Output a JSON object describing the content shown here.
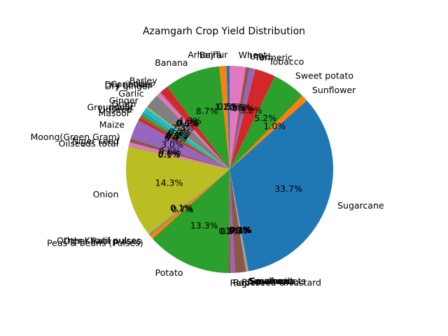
{
  "chart_data": {
    "type": "pie",
    "title": "Azamgarh Crop Yield Distribution",
    "start_angle_deg": 90,
    "direction": "counterclockwise",
    "slices": [
      {
        "label": "Arhar/Tur",
        "value": 0.5,
        "pct_label": "0.5%",
        "color": "#1f77b4"
      },
      {
        "label": "Bajra",
        "value": 1.1,
        "pct_label": "1.1%",
        "color": "#ff7f0e"
      },
      {
        "label": "Banana",
        "value": 8.7,
        "pct_label": "8.7%",
        "color": "#2ca02c"
      },
      {
        "label": "Barley",
        "value": 1.3,
        "pct_label": "1.3%",
        "color": "#d62728"
      },
      {
        "label": "Coriander",
        "value": 0.1,
        "pct_label": "0.1%",
        "color": "#9467bd"
      },
      {
        "label": "Dry chillies",
        "value": 0.1,
        "pct_label": "0.1%",
        "color": "#8c564b"
      },
      {
        "label": "Dry ginger",
        "value": 0.6,
        "pct_label": "0.6%",
        "color": "#e377c2"
      },
      {
        "label": "Garlic",
        "value": 2.3,
        "pct_label": "2.3%",
        "color": "#7f7f7f"
      },
      {
        "label": "Ginger",
        "value": 0.2,
        "pct_label": "0.2%",
        "color": "#bcbd22"
      },
      {
        "label": "Gram",
        "value": 0.9,
        "pct_label": "0.9%",
        "color": "#17becf"
      },
      {
        "label": "Groundnut",
        "value": 0.2,
        "pct_label": "0.2%",
        "color": "#1f77b4"
      },
      {
        "label": "Jowar",
        "value": 0.1,
        "pct_label": "0.1%",
        "color": "#ff7f0e"
      },
      {
        "label": "Linseed",
        "value": 0.5,
        "pct_label": "0.5%",
        "color": "#2ca02c"
      },
      {
        "label": "Masoor",
        "value": 0.6,
        "pct_label": "0.6%",
        "color": "#d62728"
      },
      {
        "label": "Maize",
        "value": 3.0,
        "pct_label": "3.0%",
        "color": "#9467bd"
      },
      {
        "label": "Moong(Green Gram)",
        "value": 0.6,
        "pct_label": "0.6%",
        "color": "#8c564b"
      },
      {
        "label": "Niger seed",
        "value": 0.6,
        "pct_label": "0.6%",
        "color": "#e377c2"
      },
      {
        "label": "Oilseeds total",
        "value": 0.1,
        "pct_label": "0.1%",
        "color": "#7f7f7f"
      },
      {
        "label": "Onion",
        "value": 14.3,
        "pct_label": "14.3%",
        "color": "#bcbd22"
      },
      {
        "label": "Other Kharif pulses",
        "value": 0.1,
        "pct_label": "0.1%",
        "color": "#17becf"
      },
      {
        "label": "Other Rabi pulses",
        "value": 0.1,
        "pct_label": "0.1%",
        "color": "#1f77b4"
      },
      {
        "label": "Peas & beans (Pulses)",
        "value": 0.7,
        "pct_label": "0.7%",
        "color": "#ff7f0e"
      },
      {
        "label": "Potato",
        "value": 13.3,
        "pct_label": "13.3%",
        "color": "#2ca02c"
      },
      {
        "label": "Ragi",
        "value": 0.2,
        "pct_label": "0.2%",
        "color": "#d62728"
      },
      {
        "label": "Rapeseed &Mustard",
        "value": 0.7,
        "pct_label": "0.7%",
        "color": "#9467bd"
      },
      {
        "label": "Rice",
        "value": 1.7,
        "pct_label": "1.7%",
        "color": "#8c564b"
      },
      {
        "label": "Sannhamp",
        "value": 0.1,
        "pct_label": "0.1%",
        "color": "#e377c2"
      },
      {
        "label": "Sesamum",
        "value": 0.1,
        "pct_label": "0.1%",
        "color": "#7f7f7f"
      },
      {
        "label": "Small millets",
        "value": 0.1,
        "pct_label": "0.1%",
        "color": "#bcbd22"
      },
      {
        "label": "Soyabean",
        "value": 0.1,
        "pct_label": "0.1%",
        "color": "#17becf"
      },
      {
        "label": "Sugarcane",
        "value": 33.7,
        "pct_label": "33.7%",
        "color": "#1f77b4"
      },
      {
        "label": "Sunflower",
        "value": 1.0,
        "pct_label": "1.0%",
        "color": "#ff7f0e"
      },
      {
        "label": "Sweet potato",
        "value": 5.2,
        "pct_label": "5.2%",
        "color": "#2ca02c"
      },
      {
        "label": "Tobacco",
        "value": 3.2,
        "pct_label": "3.2%",
        "color": "#d62728"
      },
      {
        "label": "Turmeric",
        "value": 0.9,
        "pct_label": "0.9%",
        "color": "#9467bd"
      },
      {
        "label": "Urad",
        "value": 0.6,
        "pct_label": "0.6%",
        "color": "#8c564b"
      },
      {
        "label": "Wheat",
        "value": 2.5,
        "pct_label": "2.5%",
        "color": "#e377c2"
      }
    ]
  }
}
